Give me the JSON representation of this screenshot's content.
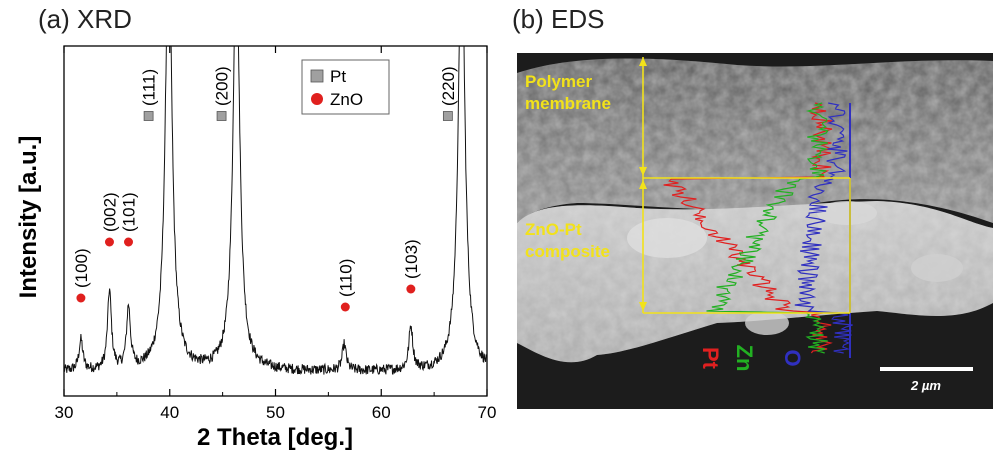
{
  "panels": {
    "a_title": "(a) XRD",
    "b_title": "(b) EDS"
  },
  "chart_data": [
    {
      "type": "line",
      "title": "(a) XRD",
      "xlabel": "2 Theta [deg.]",
      "ylabel": "Intensity [a.u.]",
      "xlim": [
        30,
        70
      ],
      "xticks": [
        30,
        40,
        50,
        60,
        70
      ],
      "y_units": "arbitrary",
      "legend": {
        "placement": "top-right",
        "entries": [
          {
            "label": "Pt",
            "marker": "square",
            "color": "#a0a0a0"
          },
          {
            "label": "ZnO",
            "marker": "circle",
            "color": "#e0201e"
          }
        ]
      },
      "series": [
        {
          "peaks": [
            {
              "position": 31.6,
              "intensity": 0.07
            },
            {
              "position": 34.3,
              "intensity": 0.18
            },
            {
              "position": 36.1,
              "intensity": 0.14
            },
            {
              "position": 39.9,
              "intensity": 1.0
            },
            {
              "position": 46.3,
              "intensity": 0.95
            },
            {
              "position": 56.5,
              "intensity": 0.06
            },
            {
              "position": 62.8,
              "intensity": 0.1
            },
            {
              "position": 67.6,
              "intensity": 1.0
            }
          ],
          "baseline": 0.07
        }
      ],
      "annotations": [
        {
          "label": "(100)",
          "x": 31.6,
          "phase": "ZnO"
        },
        {
          "label": "(002)",
          "x": 34.3,
          "phase": "ZnO"
        },
        {
          "label": "(101)",
          "x": 36.1,
          "phase": "ZnO"
        },
        {
          "label": "(111)",
          "x": 38.0,
          "phase": "Pt"
        },
        {
          "label": "(200)",
          "x": 44.9,
          "phase": "Pt"
        },
        {
          "label": "(110)",
          "x": 56.6,
          "phase": "ZnO"
        },
        {
          "label": "(103)",
          "x": 62.8,
          "phase": "ZnO"
        },
        {
          "label": "(220)",
          "x": 66.3,
          "phase": "Pt"
        }
      ]
    },
    {
      "type": "line",
      "title": "(b) EDS",
      "series": [
        {
          "name": "Pt",
          "color": "#e02020"
        },
        {
          "name": "Zn",
          "color": "#22b022"
        },
        {
          "name": "O",
          "color": "#3030c0"
        }
      ],
      "regions": [
        "Polymer membrane",
        "ZnO-Pt composite"
      ],
      "scale_bar": "2 µm"
    }
  ],
  "eds": {
    "region1": [
      "Polymer",
      "membrane"
    ],
    "region2": [
      "ZnO-Pt",
      "composite"
    ],
    "label_pt": "Pt",
    "label_zn": "Zn",
    "label_o": "O",
    "scale": "2 µm"
  },
  "colors": {
    "pt_marker": "#a0a0a0",
    "zno_marker": "#e0201e",
    "eds_pt": "#e02020",
    "eds_zn": "#22b022",
    "eds_o": "#3030c0",
    "eds_annot": "#f2e21a"
  }
}
